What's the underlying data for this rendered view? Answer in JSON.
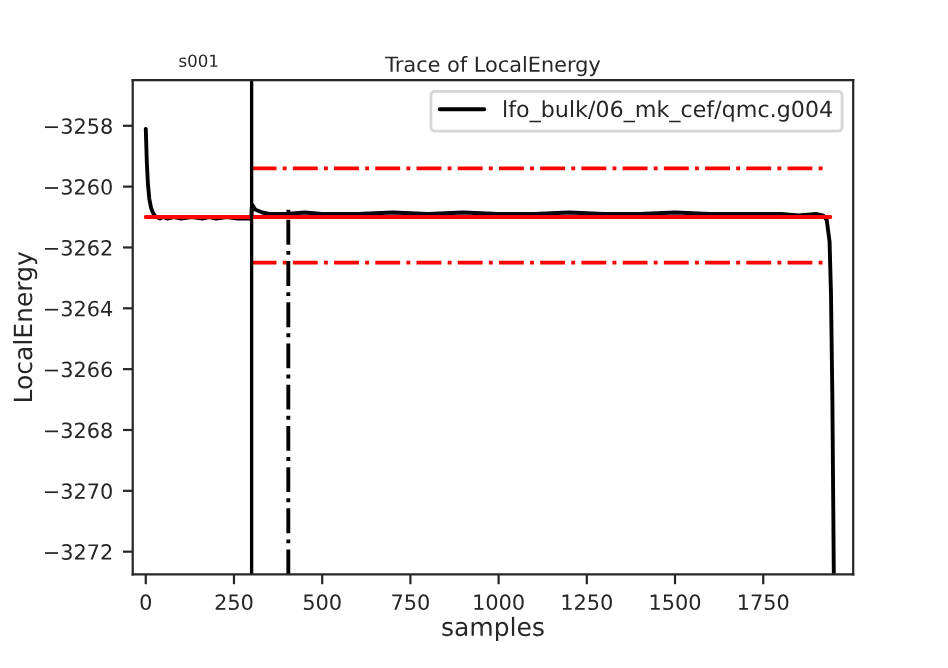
{
  "chart_data": {
    "type": "line",
    "title": "Trace of LocalEnergy",
    "xlabel": "samples",
    "ylabel": "LocalEnergy",
    "annotations": [
      "s001"
    ],
    "xlim": [
      -37,
      2005
    ],
    "ylim": [
      -3272.75,
      -3256.5
    ],
    "xticks": [
      0,
      250,
      500,
      750,
      1000,
      1250,
      1500,
      1750
    ],
    "yticks": [
      {
        "value": -3258,
        "label": "−3258"
      },
      {
        "value": -3260,
        "label": "−3260"
      },
      {
        "value": -3262,
        "label": "−3262"
      },
      {
        "value": -3264,
        "label": "−3264"
      },
      {
        "value": -3266,
        "label": "−3266"
      },
      {
        "value": -3268,
        "label": "−3268"
      },
      {
        "value": -3270,
        "label": "−3270"
      },
      {
        "value": -3272,
        "label": "−3272"
      }
    ],
    "grid": false,
    "legend": "top right",
    "ref_lines": [
      {
        "axis": "x",
        "value": 300,
        "color": "#000000",
        "line_style": "solid"
      }
    ],
    "series": [
      {
        "name": "lfo_bulk/06_mk_cef/qmc.g004",
        "color": "#000000",
        "line_style": "solid",
        "x": [
          0,
          3,
          6,
          10,
          15,
          20,
          25,
          30,
          40,
          50,
          60,
          80,
          100,
          130,
          160,
          180,
          200,
          230,
          260,
          280,
          299,
          301,
          305,
          310,
          320,
          330,
          350,
          400,
          450,
          500,
          600,
          700,
          800,
          900,
          1000,
          1100,
          1200,
          1300,
          1400,
          1500,
          1600,
          1700,
          1800,
          1850,
          1900,
          1920,
          1930,
          1938,
          1942,
          1946,
          1950
        ],
        "values": [
          -3258.1,
          -3259.2,
          -3259.9,
          -3260.4,
          -3260.7,
          -3260.85,
          -3260.95,
          -3261.0,
          -3261.05,
          -3261.0,
          -3261.05,
          -3261.0,
          -3261.05,
          -3261.0,
          -3261.05,
          -3261.0,
          -3261.05,
          -3261.0,
          -3261.05,
          -3261.05,
          -3261.05,
          -3260.6,
          -3260.65,
          -3260.75,
          -3260.8,
          -3260.85,
          -3260.9,
          -3260.9,
          -3260.85,
          -3260.9,
          -3260.9,
          -3260.85,
          -3260.9,
          -3260.85,
          -3260.9,
          -3260.9,
          -3260.85,
          -3260.9,
          -3260.9,
          -3260.85,
          -3260.9,
          -3260.9,
          -3260.9,
          -3260.95,
          -3260.9,
          -3260.95,
          -3261.1,
          -3261.8,
          -3263.5,
          -3267,
          -3272.7
        ]
      },
      {
        "color": "#ff0000",
        "line_style": "solid",
        "x": [
          0,
          1940
        ],
        "values": [
          -3261.0,
          -3261.0
        ]
      },
      {
        "color": "#ff0000",
        "line_style": "dashdot",
        "x": [
          300,
          1935
        ],
        "values": [
          -3259.4,
          -3259.4
        ]
      },
      {
        "color": "#ff0000",
        "line_style": "dashdot",
        "x": [
          300,
          1935
        ],
        "values": [
          -3262.5,
          -3262.5
        ]
      },
      {
        "color": "#000000",
        "line_style": "dashdot",
        "x": [
          404,
          404
        ],
        "values": [
          -3272.75,
          -3260.7
        ]
      }
    ]
  }
}
